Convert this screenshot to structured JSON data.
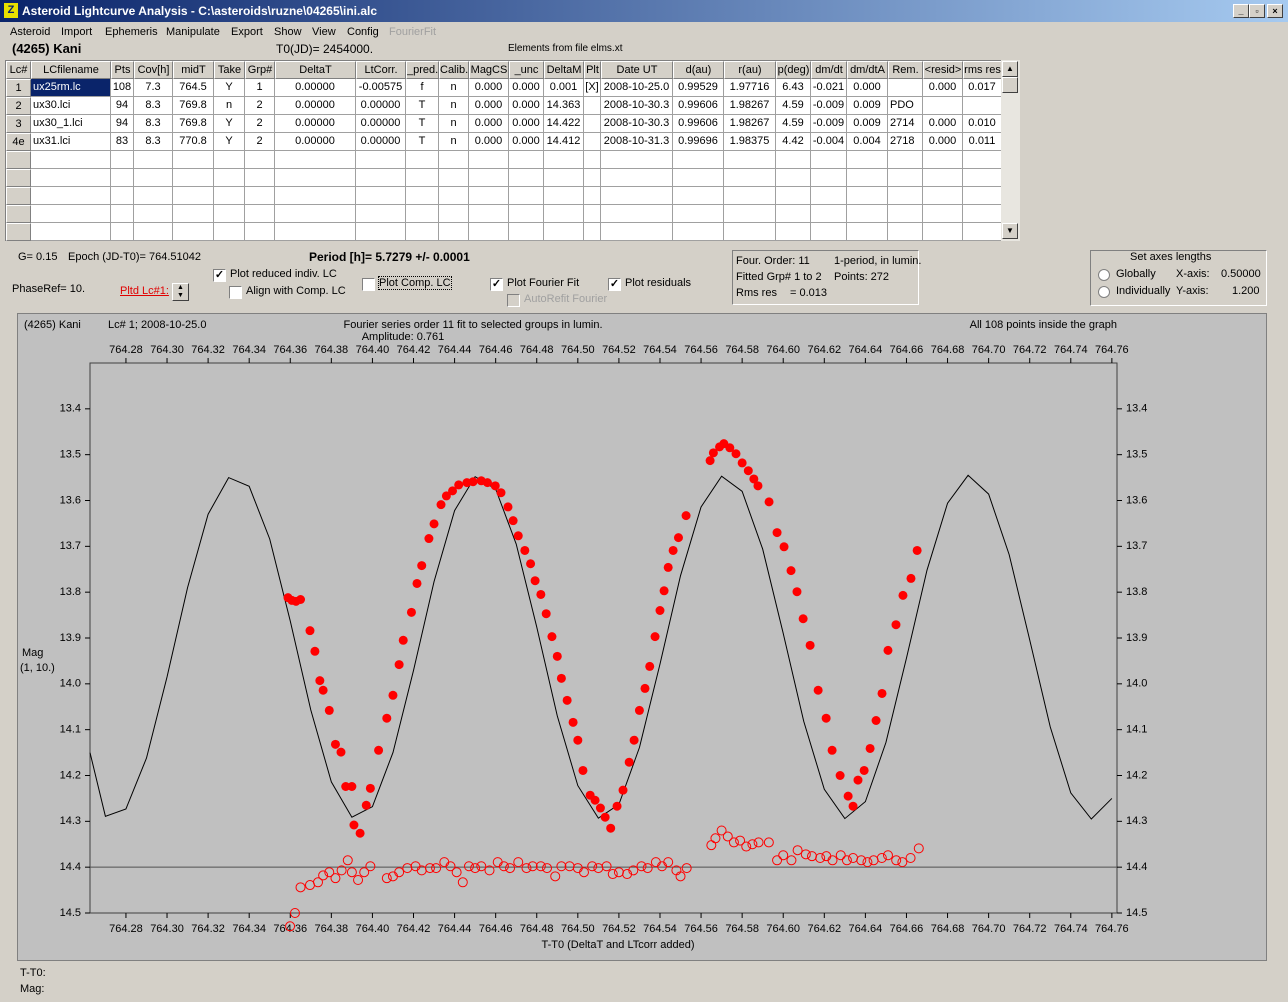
{
  "window": {
    "title": "Asteroid Lightcurve Analysis - C:\\asteroids\\ruzne\\04265\\ini.alc"
  },
  "menu": [
    {
      "label": "Asteroid",
      "enabled": true
    },
    {
      "label": "Import",
      "enabled": true
    },
    {
      "label": "Ephemeris",
      "enabled": true
    },
    {
      "label": "Manipulate",
      "enabled": true
    },
    {
      "label": "Export",
      "enabled": true
    },
    {
      "label": "Show",
      "enabled": true
    },
    {
      "label": "View",
      "enabled": true
    },
    {
      "label": "Config",
      "enabled": true
    },
    {
      "label": "FourierFit",
      "enabled": false
    }
  ],
  "header": {
    "asteroid": "(4265) Kani",
    "t0": "T0(JD)= 2454000.",
    "elements": "Elements from file elms.xt"
  },
  "table": {
    "columns": [
      "Lc#",
      "LCfilename",
      "Pts",
      "Cov[h]",
      "midT",
      "Take",
      "Grp#",
      "DeltaT",
      "LtCorr.",
      "_pred.",
      "Calib.",
      "MagCS",
      "_unc",
      "DeltaM",
      "Plt",
      "Date UT",
      "d(au)",
      "r(au)",
      "p(deg)",
      "dm/dt",
      "dm/dtA",
      "Rem.",
      "<resid>",
      "rms res"
    ],
    "rows": [
      [
        "1",
        "ux25rm.lc",
        "108",
        "7.3",
        "764.5",
        "Y",
        "1",
        "0.00000",
        "-0.00575",
        "f",
        "n",
        "0.000",
        "0.000",
        "0.001",
        "[X]",
        "2008-10-25.0",
        "0.99529",
        "1.97716",
        "6.43",
        "-0.021",
        "0.000",
        null,
        "0.000",
        "0.017"
      ],
      [
        "2",
        "ux30.lci",
        "94",
        "8.3",
        "769.8",
        "n",
        "2",
        "0.00000",
        "0.00000",
        "T",
        "n",
        "0.000",
        "0.000",
        "14.363",
        null,
        "2008-10-30.3",
        "0.99606",
        "1.98267",
        "4.59",
        "-0.009",
        "0.009",
        "PDO",
        null,
        null
      ],
      [
        "3",
        "ux30_1.lci",
        "94",
        "8.3",
        "769.8",
        "Y",
        "2",
        "0.00000",
        "0.00000",
        "T",
        "n",
        "0.000",
        "0.000",
        "14.422",
        null,
        "2008-10-30.3",
        "0.99606",
        "1.98267",
        "4.59",
        "-0.009",
        "0.009",
        "2714",
        "0.000",
        "0.010"
      ],
      [
        "4e",
        "ux31.lci",
        "83",
        "8.3",
        "770.8",
        "Y",
        "2",
        "0.00000",
        "0.00000",
        "T",
        "n",
        "0.000",
        "0.000",
        "14.412",
        null,
        "2008-10-31.3",
        "0.99696",
        "1.98375",
        "4.42",
        "-0.004",
        "0.004",
        "2718",
        "0.000",
        "0.011"
      ]
    ]
  },
  "controls": {
    "g": "G= 0.15",
    "epoch": "Epoch (JD-T0)= 764.51042",
    "period": "Period [h]= 5.7279 +/- 0.0001",
    "phase_ref": "PhaseRef= 10.",
    "pltd_lc": "Pltd Lc#1:",
    "checkboxes": [
      {
        "label": "Plot reduced indiv. LC",
        "checked": true,
        "enabled": true
      },
      {
        "label": "Align with Comp. LC",
        "checked": false,
        "enabled": true
      },
      {
        "label": "Plot Comp. LC",
        "checked": false,
        "enabled": true
      },
      {
        "label": "Plot Fourier Fit",
        "checked": true,
        "enabled": true
      },
      {
        "label": "AutoRefit Fourier",
        "checked": false,
        "enabled": false
      },
      {
        "label": "Plot residuals",
        "checked": true,
        "enabled": true
      }
    ],
    "fit_info": [
      "Four. Order: 11",
      "1-period, in lumin.",
      "Fitted Grp# 1 to 2",
      "Points: 272",
      "Rms res",
      "= 0.013"
    ],
    "axes": {
      "title": "Set axes lengths",
      "options": [
        "Globally",
        "Individually"
      ],
      "x_label": "X-axis:",
      "x_value": "0.50000",
      "y_label": "Y-axis:",
      "y_value": "1.200"
    }
  },
  "chart_data": {
    "type": "lightcurve",
    "title": "(4265) Kani",
    "subtitle": "Lc# 1; 2008-10-25.0",
    "annotations": [
      "Fourier series order 11 fit to selected groups in lumin.",
      "Amplitude: 0.761",
      "All 108 points inside the graph"
    ],
    "ylabel": [
      "Mag",
      "(1, 10.)"
    ],
    "xlabel": "T-T0 (DeltaT and LTcorr added)",
    "xlim": [
      764.2625,
      764.7625
    ],
    "ylim": [
      14.5,
      13.3
    ],
    "xticks": [
      764.28,
      {
        "value": 764.3,
        "label": "764.30"
      },
      764.32,
      764.34,
      764.36,
      764.38,
      {
        "value": 764.4,
        "label": "764.40"
      },
      764.42,
      764.44,
      764.46,
      764.48,
      {
        "value": 764.5,
        "label": "764.50"
      },
      764.52,
      764.54,
      764.56,
      764.58,
      {
        "value": 764.6,
        "label": "764.60"
      },
      764.62,
      764.64,
      764.66,
      764.68,
      {
        "value": 764.7,
        "label": "764.70"
      },
      764.72,
      764.74,
      764.76
    ],
    "yticks": [
      13.4,
      13.5,
      13.6,
      13.7,
      13.8,
      13.9,
      {
        "value": 14,
        "label": "14.0"
      },
      14.1,
      14.2,
      14.3,
      14.4,
      14.5
    ],
    "residual_line": 14.4,
    "series": [
      {
        "kind": "line",
        "color": "#000000",
        "x": [
          764.2625,
          764.27,
          764.28,
          764.29,
          764.3,
          764.31,
          764.32,
          764.33,
          764.34,
          764.35,
          764.36,
          764.37,
          764.38,
          764.39,
          764.4,
          764.41,
          764.42,
          764.43,
          764.44,
          764.45,
          764.46,
          764.47,
          764.48,
          764.49,
          764.5,
          764.51,
          764.52,
          764.53,
          764.54,
          764.55,
          764.56,
          764.57,
          764.58,
          764.59,
          764.6,
          764.61,
          764.62,
          764.63,
          764.64,
          764.65,
          764.66,
          764.67,
          764.68,
          764.69,
          764.7,
          764.71,
          764.72,
          764.73,
          764.74,
          764.75,
          764.76
        ],
        "values": [
          14.15,
          14.289,
          14.273,
          14.162,
          13.985,
          13.79,
          13.63,
          13.55,
          13.569,
          13.684,
          13.863,
          14.057,
          14.214,
          14.291,
          14.268,
          14.15,
          13.971,
          13.777,
          13.622,
          13.548,
          13.575,
          13.695,
          13.876,
          14.07,
          14.222,
          14.293,
          14.263,
          14.139,
          13.957,
          13.764,
          13.614,
          13.547,
          13.58,
          13.706,
          13.89,
          14.082,
          14.23,
          14.294,
          14.257,
          14.128,
          13.944,
          13.752,
          13.606,
          13.545,
          13.586,
          13.718,
          13.904,
          14.094,
          14.238,
          14.295,
          14.25
        ]
      },
      {
        "kind": "filled",
        "color": "#ff0000",
        "x": [
          764.3589,
          764.3608,
          764.3628,
          764.365,
          764.3696,
          764.372,
          764.3744,
          764.376,
          764.379,
          764.382,
          764.3847,
          764.387,
          764.39,
          764.391,
          764.394,
          764.397,
          764.399,
          764.403,
          764.407,
          764.41,
          764.413,
          764.415,
          764.419,
          764.4217,
          764.424,
          764.4275,
          764.43,
          764.4334,
          764.436,
          764.439,
          764.442,
          764.446,
          764.449,
          764.453,
          764.456,
          764.4598,
          764.4626,
          764.466,
          764.4685,
          764.471,
          764.4742,
          764.477,
          764.4792,
          764.482,
          764.4846,
          764.4874,
          764.49,
          764.492,
          764.4948,
          764.4977,
          764.5,
          764.5025,
          764.506,
          764.5084,
          764.511,
          764.5133,
          764.516,
          764.5191,
          764.522,
          764.525,
          764.5274,
          764.53,
          764.5327,
          764.535,
          764.5376,
          764.54,
          764.542,
          764.544,
          764.5464,
          764.549,
          764.5527,
          764.5644,
          764.566,
          764.569,
          764.5711,
          764.574,
          764.577,
          764.58,
          764.583,
          764.5857,
          764.5877,
          764.5931,
          764.597,
          764.6004,
          764.6038,
          764.6067,
          764.6097,
          764.6131,
          764.617,
          764.6209,
          764.6238,
          764.6277,
          764.6316,
          764.634,
          764.6364,
          764.6394,
          764.6423,
          764.6452,
          764.6481,
          764.651,
          764.6549,
          764.6583,
          764.6622,
          764.6652
        ],
        "values": [
          13.812,
          13.818,
          13.82,
          13.816,
          13.884,
          13.929,
          13.993,
          14.014,
          14.058,
          14.132,
          14.149,
          14.224,
          14.224,
          14.308,
          14.326,
          14.265,
          14.228,
          14.145,
          14.075,
          14.025,
          13.958,
          13.905,
          13.844,
          13.781,
          13.742,
          13.683,
          13.651,
          13.609,
          13.59,
          13.579,
          13.566,
          13.561,
          13.559,
          13.557,
          13.561,
          13.568,
          13.583,
          13.614,
          13.644,
          13.677,
          13.709,
          13.738,
          13.775,
          13.805,
          13.847,
          13.897,
          13.94,
          13.988,
          14.036,
          14.084,
          14.123,
          14.189,
          14.243,
          14.254,
          14.271,
          14.291,
          14.315,
          14.267,
          14.232,
          14.171,
          14.123,
          14.058,
          14.01,
          13.962,
          13.897,
          13.84,
          13.797,
          13.746,
          13.709,
          13.681,
          13.633,
          13.513,
          13.496,
          13.483,
          13.476,
          13.485,
          13.498,
          13.518,
          13.535,
          13.553,
          13.568,
          13.603,
          13.67,
          13.701,
          13.753,
          13.799,
          13.858,
          13.916,
          14.014,
          14.075,
          14.145,
          14.2,
          14.245,
          14.267,
          14.21,
          14.189,
          14.141,
          14.08,
          14.021,
          13.927,
          13.871,
          13.807,
          13.77,
          13.709
        ]
      },
      {
        "kind": "open",
        "color": "#ff0000",
        "x": [
          764.3599,
          764.3623,
          764.365,
          764.3696,
          764.3735,
          764.376,
          764.379,
          764.382,
          764.385,
          764.388,
          764.39,
          764.393,
          764.396,
          764.399,
          764.407,
          764.41,
          764.413,
          764.417,
          764.421,
          764.424,
          764.428,
          764.431,
          764.435,
          764.438,
          764.441,
          764.444,
          764.447,
          764.45,
          764.453,
          764.457,
          764.461,
          764.464,
          764.467,
          764.471,
          764.475,
          764.478,
          764.482,
          764.485,
          764.489,
          764.492,
          764.496,
          764.5,
          764.503,
          764.507,
          764.51,
          764.514,
          764.517,
          764.52,
          764.524,
          764.527,
          764.531,
          764.534,
          764.538,
          764.541,
          764.544,
          764.548,
          764.55,
          764.553,
          764.565,
          764.567,
          764.57,
          764.573,
          764.576,
          764.579,
          764.582,
          764.585,
          764.588,
          764.593,
          764.597,
          764.6,
          764.604,
          764.607,
          764.611,
          764.614,
          764.618,
          764.621,
          764.624,
          764.628,
          764.631,
          764.634,
          764.638,
          764.641,
          764.644,
          764.648,
          764.651,
          764.655,
          764.658,
          764.662,
          764.666
        ],
        "values": [
          14.529,
          14.5,
          14.444,
          14.439,
          14.433,
          14.418,
          14.411,
          14.424,
          14.407,
          14.385,
          14.411,
          14.428,
          14.411,
          14.398,
          14.424,
          14.42,
          14.411,
          14.402,
          14.398,
          14.407,
          14.402,
          14.402,
          14.389,
          14.398,
          14.411,
          14.433,
          14.398,
          14.402,
          14.398,
          14.407,
          14.389,
          14.398,
          14.402,
          14.389,
          14.402,
          14.398,
          14.398,
          14.402,
          14.42,
          14.398,
          14.398,
          14.402,
          14.411,
          14.398,
          14.402,
          14.398,
          14.415,
          14.411,
          14.415,
          14.407,
          14.398,
          14.402,
          14.389,
          14.398,
          14.389,
          14.407,
          14.42,
          14.402,
          14.352,
          14.337,
          14.32,
          14.333,
          14.346,
          14.342,
          14.355,
          14.35,
          14.346,
          14.346,
          14.385,
          14.374,
          14.385,
          14.363,
          14.372,
          14.376,
          14.38,
          14.376,
          14.385,
          14.374,
          14.385,
          14.38,
          14.385,
          14.389,
          14.385,
          14.38,
          14.374,
          14.385,
          14.389,
          14.38,
          14.359
        ]
      }
    ]
  },
  "status": [
    "T-T0:",
    "Mag:"
  ]
}
